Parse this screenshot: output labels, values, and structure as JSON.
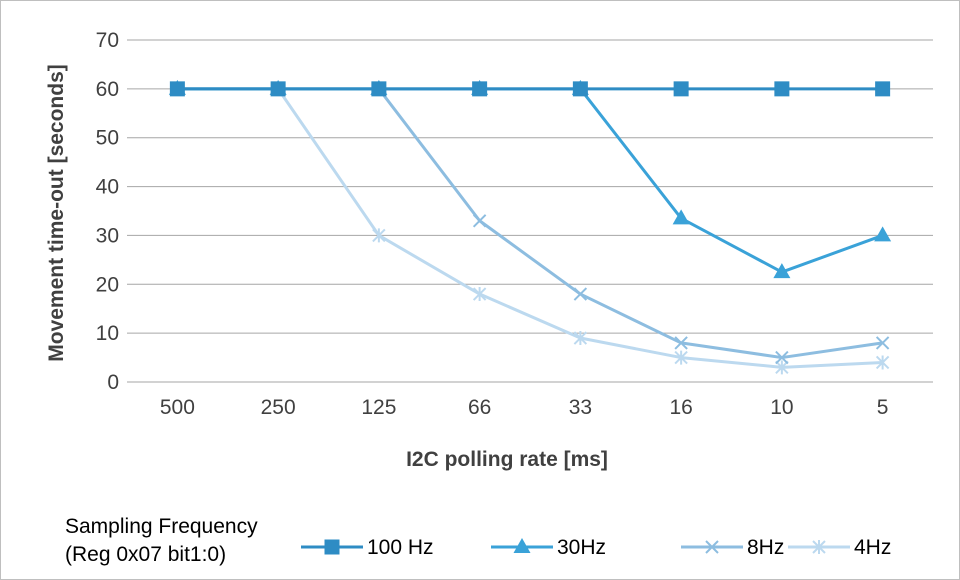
{
  "chart_data": {
    "type": "line",
    "title": "",
    "xlabel": "I2C polling rate [ms]",
    "ylabel": "Movement time-out [seconds]",
    "categories": [
      "500",
      "250",
      "125",
      "66",
      "33",
      "16",
      "10",
      "5"
    ],
    "ylim": [
      0,
      70
    ],
    "yticks": [
      0,
      10,
      20,
      30,
      40,
      50,
      60,
      70
    ],
    "grid": "horizontal",
    "legend": {
      "title_line1": "Sampling Frequency",
      "title_line2": "(Reg 0x07 bit1:0)",
      "placement": "bottom"
    },
    "series": [
      {
        "name": "100 Hz",
        "color": "#2e8cc4",
        "marker": "square",
        "values": [
          60,
          60,
          60,
          60,
          60,
          60,
          60,
          60
        ]
      },
      {
        "name": "30Hz",
        "color": "#3aa2d8",
        "marker": "triangle",
        "values": [
          60,
          60,
          60,
          60,
          60,
          33.5,
          22.5,
          30
        ]
      },
      {
        "name": "8Hz",
        "color": "#8dbde0",
        "marker": "x",
        "values": [
          60,
          60,
          60,
          33,
          18,
          8,
          5,
          8
        ]
      },
      {
        "name": "4Hz",
        "color": "#bcd9ef",
        "marker": "star",
        "values": [
          60,
          60,
          30,
          18,
          9,
          5,
          3,
          4
        ]
      }
    ]
  }
}
